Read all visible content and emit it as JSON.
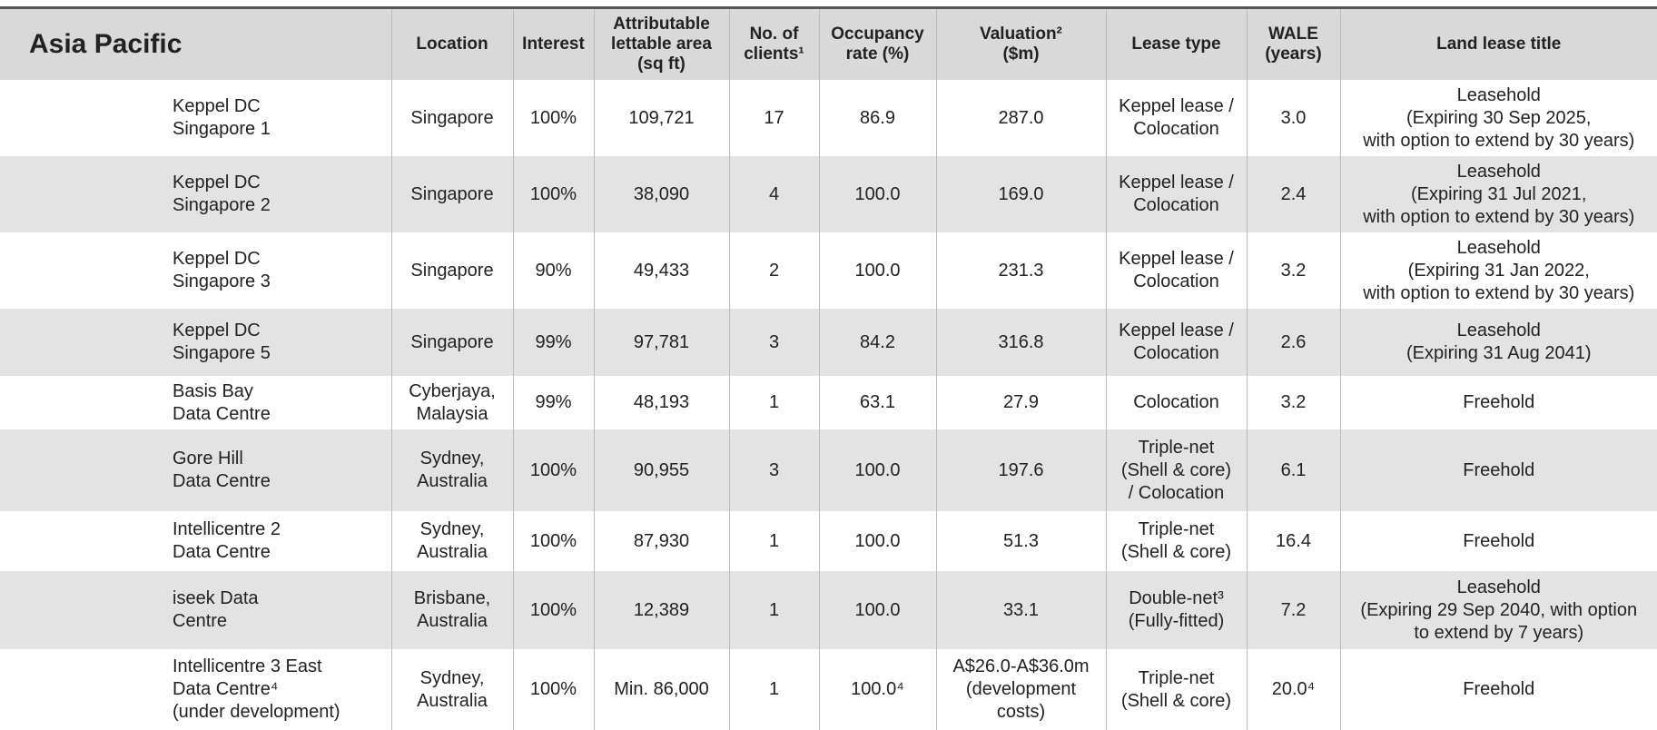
{
  "header": {
    "title": "Asia Pacific",
    "columns": [
      "Location",
      "Interest",
      "Attributable\nlettable area\n(sq ft)",
      "No. of\nclients¹",
      "Occupancy\nrate (%)",
      "Valuation²\n($m)",
      "Lease type",
      "WALE\n(years)",
      "Land lease title"
    ]
  },
  "table": {
    "rows": [
      [
        "Keppel DC\nSingapore 1",
        "Singapore",
        "100%",
        "109,721",
        "17",
        "86.9",
        "287.0",
        "Keppel lease /\nColocation",
        "3.0",
        "Leasehold\n(Expiring 30 Sep 2025,\nwith option to extend by 30 years)"
      ],
      [
        "Keppel DC\nSingapore 2",
        "Singapore",
        "100%",
        "38,090",
        "4",
        "100.0",
        "169.0",
        "Keppel lease /\nColocation",
        "2.4",
        "Leasehold\n(Expiring 31 Jul 2021,\nwith option  to extend by 30 years)"
      ],
      [
        "Keppel DC\nSingapore 3",
        "Singapore",
        "90%",
        "49,433",
        "2",
        "100.0",
        "231.3",
        "Keppel lease /\nColocation",
        "3.2",
        "Leasehold\n(Expiring 31 Jan 2022,\nwith option to extend by 30 years)"
      ],
      [
        "Keppel DC\nSingapore 5",
        "Singapore",
        "99%",
        "97,781",
        "3",
        "84.2",
        "316.8",
        "Keppel lease /\nColocation",
        "2.6",
        "Leasehold\n(Expiring 31 Aug 2041)"
      ],
      [
        "Basis Bay\nData Centre",
        "Cyberjaya,\nMalaysia",
        "99%",
        "48,193",
        "1",
        "63.1",
        "27.9",
        "Colocation",
        "3.2",
        "Freehold"
      ],
      [
        "Gore Hill\nData Centre",
        "Sydney,\nAustralia",
        "100%",
        "90,955",
        "3",
        "100.0",
        "197.6",
        "Triple-net\n(Shell & core)\n/ Colocation",
        "6.1",
        "Freehold"
      ],
      [
        "Intellicentre 2\nData Centre",
        "Sydney,\nAustralia",
        "100%",
        "87,930",
        "1",
        "100.0",
        "51.3",
        "Triple-net\n(Shell & core)",
        "16.4",
        "Freehold"
      ],
      [
        "iseek Data\nCentre",
        "Brisbane,\nAustralia",
        "100%",
        "12,389",
        "1",
        "100.0",
        "33.1",
        "Double-net³\n(Fully-fitted)",
        "7.2",
        "Leasehold\n(Expiring 29 Sep 2040, with option\nto extend by 7 years)"
      ],
      [
        "Intellicentre 3 East\nData Centre⁴\n(under development)",
        "Sydney,\nAustralia",
        "100%",
        "Min. 86,000",
        "1",
        "100.0⁴",
        "A$26.0-A$36.0m\n(development\ncosts)",
        "Triple-net\n(Shell & core)",
        "20.0⁴",
        "Freehold"
      ]
    ]
  }
}
